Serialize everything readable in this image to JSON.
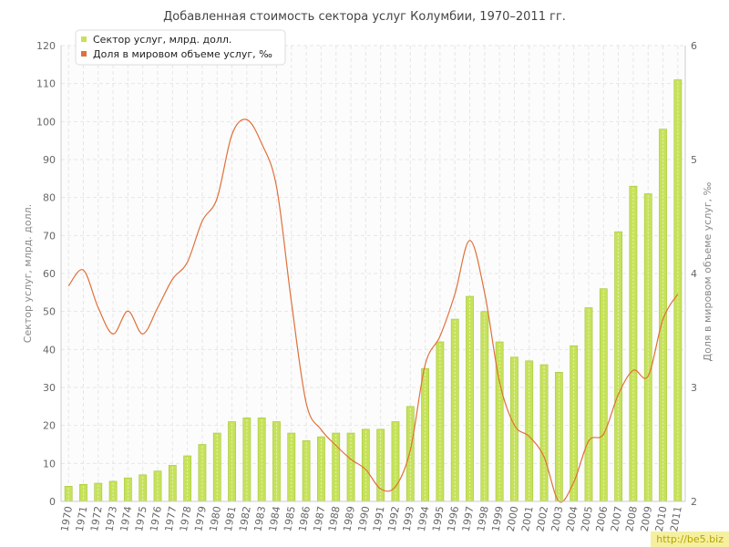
{
  "watermark": "http://be5.biz",
  "colors": {
    "bar_fill": "#c6e25a",
    "bar_stroke": "#a6c63a",
    "line": "#e0703a",
    "grid": "#e6e6e6",
    "axis_text": "#666666"
  },
  "chart_data": {
    "type": "bar",
    "title": "Добавленная стоимость сектора услуг Колумбии, 1970–2011 гг.",
    "ylabel": "Сектор услуг, млрд. долл.",
    "y2label": "Доля в мировом объеме услуг, ‰",
    "ylim": [
      0,
      120
    ],
    "y2lim": [
      2,
      6
    ],
    "yticks": [
      0,
      10,
      20,
      30,
      40,
      50,
      60,
      70,
      80,
      90,
      100,
      110,
      120
    ],
    "y2ticks": [
      2,
      3,
      4,
      5,
      6
    ],
    "grid": true,
    "legend_position": "top-left",
    "categories": [
      "1970",
      "1971",
      "1972",
      "1973",
      "1974",
      "1975",
      "1976",
      "1977",
      "1978",
      "1979",
      "1980",
      "1981",
      "1982",
      "1983",
      "1984",
      "1985",
      "1986",
      "1987",
      "1988",
      "1989",
      "1990",
      "1991",
      "1992",
      "1993",
      "1994",
      "1995",
      "1996",
      "1997",
      "1998",
      "1999",
      "2000",
      "2001",
      "2002",
      "2003",
      "2004",
      "2005",
      "2006",
      "2007",
      "2008",
      "2009",
      "2010",
      "2011"
    ],
    "series": [
      {
        "name": "Сектор услуг, млрд. долл.",
        "type": "bar",
        "axis": "left",
        "color": "#c6e25a",
        "values": [
          4,
          4.5,
          4.8,
          5.3,
          6.2,
          7,
          8,
          9.5,
          12,
          15,
          18,
          21,
          22,
          22,
          21,
          18,
          16,
          17,
          18,
          18,
          19,
          19,
          21,
          25,
          35,
          42,
          48,
          54,
          50,
          42,
          38,
          37,
          36,
          34,
          41,
          51,
          56,
          71,
          83,
          81,
          98,
          111
        ]
      },
      {
        "name": "Доля в мировом объеме услуг, ‰",
        "type": "line",
        "axis": "right",
        "color": "#e0703a",
        "values": [
          3.89,
          4.03,
          3.7,
          3.47,
          3.67,
          3.47,
          3.7,
          3.95,
          4.1,
          4.46,
          4.66,
          5.22,
          5.35,
          5.14,
          4.76,
          3.75,
          2.86,
          2.63,
          2.49,
          2.37,
          2.28,
          2.11,
          2.13,
          2.45,
          3.2,
          3.45,
          3.82,
          4.29,
          3.83,
          3.05,
          2.67,
          2.57,
          2.39,
          2.0,
          2.17,
          2.53,
          2.59,
          2.94,
          3.15,
          3.1,
          3.6,
          3.82
        ]
      }
    ]
  }
}
